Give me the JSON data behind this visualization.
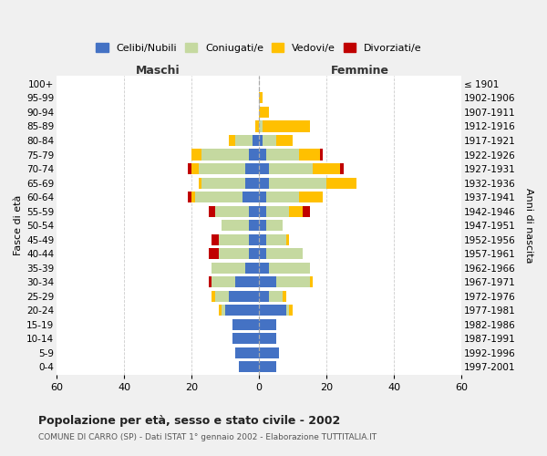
{
  "age_groups": [
    "0-4",
    "5-9",
    "10-14",
    "15-19",
    "20-24",
    "25-29",
    "30-34",
    "35-39",
    "40-44",
    "45-49",
    "50-54",
    "55-59",
    "60-64",
    "65-69",
    "70-74",
    "75-79",
    "80-84",
    "85-89",
    "90-94",
    "95-99",
    "100+"
  ],
  "birth_years": [
    "1997-2001",
    "1992-1996",
    "1987-1991",
    "1982-1986",
    "1977-1981",
    "1972-1976",
    "1967-1971",
    "1962-1966",
    "1957-1961",
    "1952-1956",
    "1947-1951",
    "1942-1946",
    "1937-1941",
    "1932-1936",
    "1927-1931",
    "1922-1926",
    "1917-1921",
    "1912-1916",
    "1907-1911",
    "1902-1906",
    "≤ 1901"
  ],
  "male": {
    "celibi": [
      6,
      7,
      8,
      8,
      10,
      9,
      7,
      4,
      3,
      3,
      3,
      3,
      5,
      4,
      4,
      3,
      2,
      0,
      0,
      0,
      0
    ],
    "coniugati": [
      0,
      0,
      0,
      0,
      1,
      4,
      7,
      10,
      9,
      9,
      8,
      10,
      14,
      13,
      14,
      14,
      5,
      0,
      0,
      0,
      0
    ],
    "vedovi": [
      0,
      0,
      0,
      0,
      1,
      1,
      0,
      0,
      0,
      0,
      0,
      0,
      1,
      1,
      2,
      3,
      2,
      1,
      0,
      0,
      0
    ],
    "divorziati": [
      0,
      0,
      0,
      0,
      0,
      0,
      1,
      0,
      3,
      2,
      0,
      2,
      1,
      0,
      1,
      0,
      0,
      0,
      0,
      0,
      0
    ]
  },
  "female": {
    "nubili": [
      5,
      6,
      5,
      5,
      8,
      3,
      5,
      3,
      2,
      2,
      2,
      2,
      2,
      3,
      3,
      2,
      1,
      0,
      0,
      0,
      0
    ],
    "coniugate": [
      0,
      0,
      0,
      0,
      1,
      4,
      10,
      12,
      11,
      6,
      5,
      7,
      10,
      17,
      13,
      10,
      4,
      1,
      0,
      0,
      0
    ],
    "vedove": [
      0,
      0,
      0,
      0,
      1,
      1,
      1,
      0,
      0,
      1,
      0,
      4,
      7,
      9,
      8,
      6,
      5,
      14,
      3,
      1,
      0
    ],
    "divorziate": [
      0,
      0,
      0,
      0,
      0,
      0,
      0,
      0,
      0,
      0,
      0,
      2,
      0,
      0,
      1,
      1,
      0,
      0,
      0,
      0,
      0
    ]
  },
  "colors": {
    "celibi_nubili": "#4472c4",
    "coniugati": "#c5d9a0",
    "vedovi": "#ffc000",
    "divorziati": "#c00000"
  },
  "title": "Popolazione per età, sesso e stato civile - 2002",
  "subtitle": "COMUNE DI CARRO (SP) - Dati ISTAT 1° gennaio 2002 - Elaborazione TUTTITALIA.IT",
  "xlabel_left": "Maschi",
  "xlabel_right": "Femmine",
  "ylabel_left": "Fasce di età",
  "ylabel_right": "Anni di nascita",
  "xlim": 60,
  "legend_labels": [
    "Celibi/Nubili",
    "Coniugati/e",
    "Vedovi/e",
    "Divorziati/e"
  ],
  "background_color": "#f0f0f0",
  "plot_background": "#ffffff",
  "grid_color": "#cccccc"
}
